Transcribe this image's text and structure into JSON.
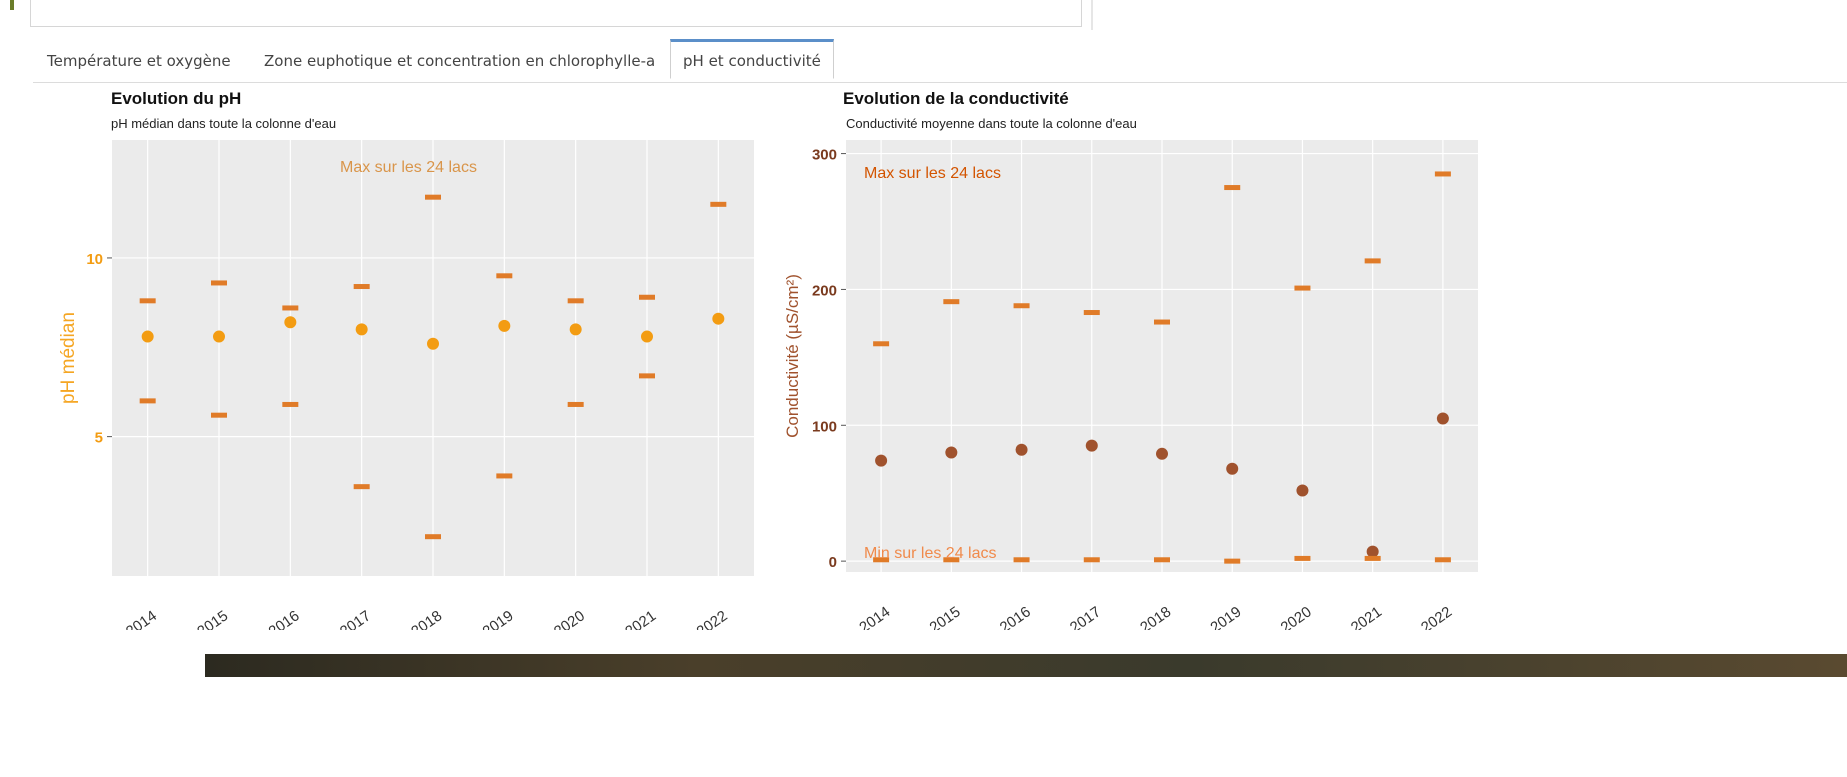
{
  "tabs": [
    {
      "label": "Température et oxygène",
      "active": false
    },
    {
      "label": "Zone euphotique et concentration en chlorophylle-a",
      "active": false
    },
    {
      "label": "pH et conductivité",
      "active": true
    }
  ],
  "chart_data": [
    {
      "type": "scatter",
      "title": "Evolution du pH",
      "subtitle": "pH médian dans toute la colonne d'eau",
      "ylabel": "pH médian",
      "xlabel": "",
      "annotations": [
        "Max sur les 24 lacs"
      ],
      "ylim": [
        1.1,
        13.3
      ],
      "yticks": [
        5,
        10
      ],
      "grid": true,
      "color": "#f39c12",
      "range_color": "#e07b28",
      "x": [
        "2014",
        "2015",
        "2016",
        "2017",
        "2018",
        "2019",
        "2020",
        "2021",
        "2022"
      ],
      "series": [
        {
          "name": "",
          "role": "median",
          "values": [
            7.8,
            7.8,
            8.2,
            8.0,
            7.6,
            8.1,
            8.0,
            7.8,
            8.3
          ]
        },
        {
          "name": "",
          "role": "max",
          "values": [
            8.8,
            9.3,
            8.6,
            9.2,
            11.7,
            9.5,
            8.8,
            8.9,
            11.5
          ]
        },
        {
          "name": "",
          "role": "min",
          "values": [
            6.0,
            5.6,
            5.9,
            3.6,
            2.2,
            3.9,
            5.9,
            6.7,
            null
          ]
        }
      ]
    },
    {
      "type": "scatter",
      "title": "Evolution de la conductivité",
      "subtitle": "Conductivité moyenne dans toute la colonne d'eau",
      "ylabel": "Conductivité (µS/cm²)",
      "xlabel": "",
      "annotations": [
        "Max sur les 24 lacs",
        "Min sur les 24 lacs"
      ],
      "ylim": [
        -8,
        310
      ],
      "yticks": [
        0,
        100,
        200,
        300
      ],
      "grid": true,
      "color": "#a0522d",
      "range_color": "#e07b28",
      "x": [
        "2014",
        "2015",
        "2016",
        "2017",
        "2018",
        "2019",
        "2020",
        "2021",
        "2022"
      ],
      "series": [
        {
          "name": "",
          "role": "mean",
          "values": [
            74,
            80,
            82,
            85,
            79,
            68,
            52,
            7,
            105
          ]
        },
        {
          "name": "",
          "role": "max",
          "values": [
            160,
            191,
            188,
            183,
            176,
            275,
            201,
            221,
            285
          ]
        },
        {
          "name": "",
          "role": "min",
          "values": [
            1,
            1,
            1,
            1,
            1,
            0,
            2,
            2,
            1
          ]
        }
      ]
    }
  ]
}
